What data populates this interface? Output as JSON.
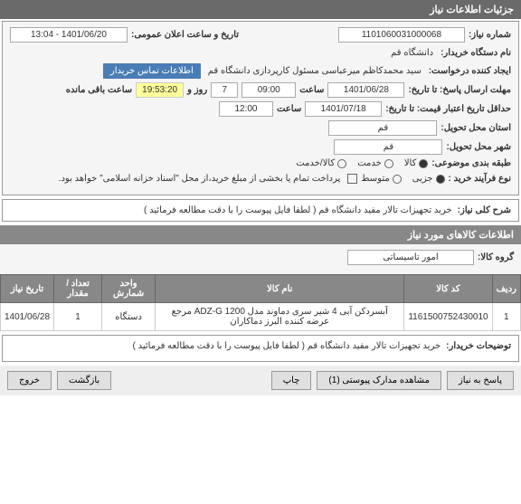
{
  "header": "جزئیات اطلاعات نیاز",
  "fields": {
    "req_number_label": "شماره نیاز:",
    "req_number": "1101060031000068",
    "announce_label": "تاریخ و ساعت اعلان عمومی:",
    "announce_value": "1401/06/20 - 13:04",
    "buyer_org_label": "نام دستگاه خریدار:",
    "buyer_org": "دانشگاه قم",
    "requester_label": "ایجاد کننده درخواست:",
    "requester": "سید محمدکاظم میرعباسی مسئول کارپردازی دانشگاه قم",
    "contact_btn": "اطلاعات تماس خریدار",
    "deadline_label": "مهلت ارسال پاسخ: تا تاریخ:",
    "deadline_date": "1401/06/28",
    "deadline_time_label": "ساعت",
    "deadline_time": "09:00",
    "days_label": "روز و",
    "days": "7",
    "remaining_label": "ساعت باقی مانده",
    "remaining": "19:53:20",
    "validity_label": "حداقل تاریخ اعتبار قیمت: تا تاریخ:",
    "validity_date": "1401/07/18",
    "validity_time_label": "ساعت",
    "validity_time": "12:00",
    "delivery_city_label": "استان محل تحویل:",
    "delivery_city": "قم",
    "delivery_city2_label": "شهر محل تحویل:",
    "delivery_city2": "قم",
    "classification_label": "طبقه بندی موضوعی:",
    "class_goods": "کالا",
    "class_service": "خدمت",
    "class_both": "کالا/خدمت",
    "process_label": "نوع فرآیند خرید :",
    "process_partial": "جزیی",
    "process_medium": "متوسط",
    "payment_note": "پرداخت تمام یا بخشی از مبلغ خرید،از محل \"اسناد خزانه اسلامی\" خواهد بود.",
    "desc_label": "شرح کلی نیاز:",
    "desc_text": "خرید تجهیزات تالار مفید دانشگاه قم ( لطفا فایل پیوست را با دقت مطالعه فرمائید )",
    "items_header": "اطلاعات کالاهای مورد نیاز",
    "group_label": "گروه کالا:",
    "group_value": "امور تاسیساتی",
    "buyer_notes_label": "توضیحات خریدار:",
    "buyer_notes_text": "خرید تجهیزات تالار مفید دانشگاه قم ( لطفا فایل پیوست را با دقت مطالعه فرمائید )"
  },
  "table": {
    "headers": [
      "ردیف",
      "کد کالا",
      "نام کالا",
      "واحد شمارش",
      "تعداد / مقدار",
      "تاریخ نیاز"
    ],
    "rows": [
      [
        "1",
        "1161500752430010",
        "آبسردکن آبی 4 شیر سری دماوند مدل ADZ-G 1200 مرجع عرضه کننده البرز دماکاران",
        "دستگاه",
        "1",
        "1401/06/28"
      ]
    ]
  },
  "buttons": {
    "reply": "پاسخ به نیاز",
    "attachments": "مشاهده مدارک پیوستی (1)",
    "print": "چاپ",
    "back": "بازگشت",
    "exit": "خروج"
  }
}
